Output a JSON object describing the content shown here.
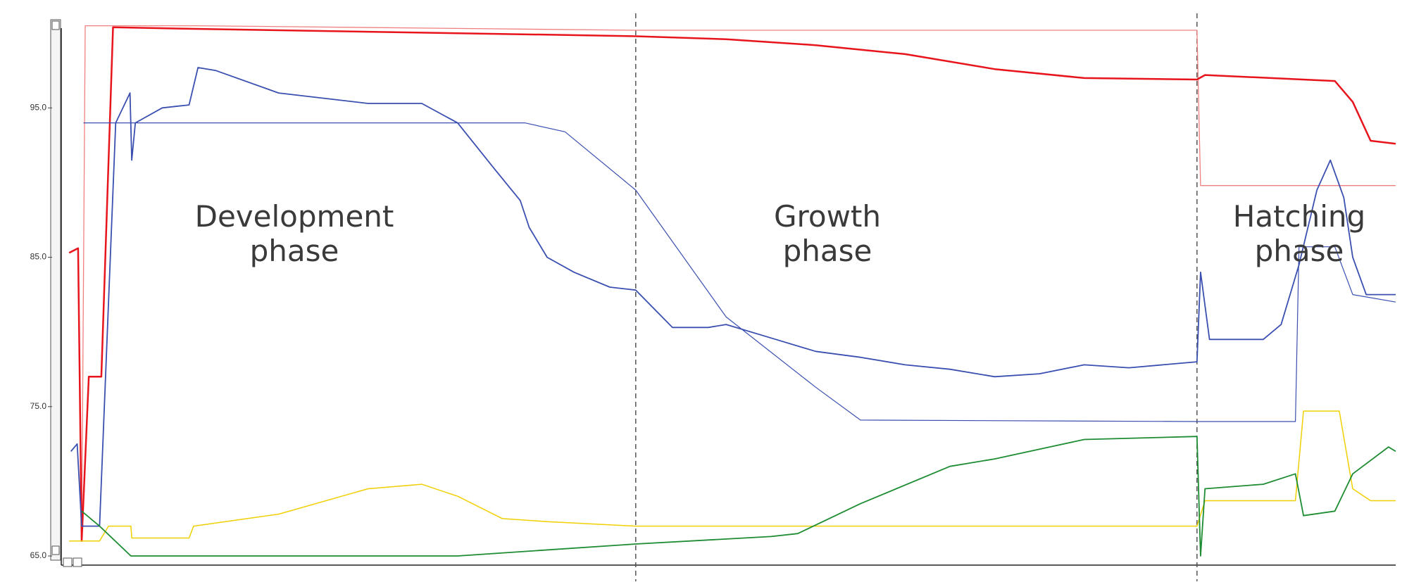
{
  "chart_data": {
    "type": "line",
    "ylim": [
      65,
      101
    ],
    "yticks": [
      {
        "value": 65,
        "label": "65.0"
      },
      {
        "value": 75,
        "label": "75.0"
      },
      {
        "value": 85,
        "label": "85.0"
      },
      {
        "value": 95,
        "label": "95.0"
      }
    ],
    "xlim": [
      58,
      1548
    ],
    "phase_boundaries": [
      699,
      1326
    ],
    "annotations": [
      "Development phase",
      "Growth phase",
      "Hatching phase"
    ],
    "series": [
      {
        "color": "#f08080",
        "width": 1.3,
        "x": [
          80,
          84,
          210,
          699,
          1326,
          1330,
          1548
        ],
        "values": [
          66,
          100.5,
          100.5,
          100.2,
          100.2,
          89.8,
          89.8
        ]
      },
      {
        "color": "#e8141c",
        "width": 2.5,
        "x": [
          66,
          76,
          80,
          88,
          102,
          115,
          200,
          400,
          600,
          699,
          800,
          900,
          1000,
          1100,
          1200,
          1326,
          1335,
          1480,
          1500,
          1520,
          1548
        ],
        "values": [
          85.3,
          85.6,
          66,
          77,
          77,
          100.4,
          100.3,
          100.1,
          99.9,
          99.8,
          99.6,
          99.2,
          98.6,
          97.6,
          97.0,
          96.9,
          97.2,
          96.8,
          95.4,
          92.8,
          92.6
        ]
      },
      {
        "color": "#3a4fb0",
        "width": 1.2,
        "x": [
          82,
          575,
          620,
          699,
          800,
          900,
          950,
          1326,
          1436,
          1440,
          1480,
          1500,
          1548
        ],
        "values": [
          94,
          94,
          93.4,
          89.5,
          81,
          76.3,
          74.1,
          74.0,
          74.0,
          85.7,
          85.7,
          82.5,
          82
        ]
      },
      {
        "color": "#3a4fb0",
        "width": 1.8,
        "x": [
          68,
          75,
          80,
          100,
          118,
          134,
          136,
          140,
          170,
          200,
          210,
          230,
          300,
          400,
          460,
          500,
          540,
          570,
          580,
          600,
          630,
          670,
          699,
          740,
          780,
          800,
          850,
          900,
          950,
          1000,
          1050,
          1100,
          1150,
          1200,
          1250,
          1326,
          1330,
          1340,
          1400,
          1420,
          1440,
          1460,
          1475,
          1490,
          1500,
          1515,
          1548
        ],
        "values": [
          72,
          72.5,
          67,
          67,
          94,
          96,
          91.5,
          94,
          95,
          95.2,
          97.7,
          97.5,
          96,
          95.3,
          95.3,
          94,
          91,
          88.8,
          87,
          85,
          84,
          83,
          82.8,
          80.3,
          80.3,
          80.5,
          79.6,
          78.7,
          78.3,
          77.8,
          77.5,
          77,
          77.2,
          77.8,
          77.6,
          78,
          84,
          79.5,
          79.5,
          80.5,
          84.5,
          89.5,
          91.5,
          89,
          85,
          82.5,
          82.5
        ]
      },
      {
        "color": "#f0d000",
        "width": 1.5,
        "x": [
          66,
          100,
          110,
          135,
          136,
          200,
          205,
          300,
          400,
          460,
          500,
          550,
          600,
          699,
          1326,
          1335,
          1436,
          1445,
          1485,
          1500,
          1520,
          1548
        ],
        "values": [
          66,
          66,
          67,
          67,
          66.2,
          66.2,
          67,
          67.8,
          69.5,
          69.8,
          69,
          67.5,
          67.3,
          67,
          67,
          68.7,
          68.7,
          74.7,
          74.7,
          69.5,
          68.7,
          68.7
        ]
      },
      {
        "color": "#1e8c32",
        "width": 1.8,
        "x": [
          80,
          100,
          135,
          500,
          699,
          850,
          880,
          950,
          1050,
          1100,
          1200,
          1326,
          1330,
          1335,
          1400,
          1436,
          1445,
          1480,
          1500,
          1540,
          1548
        ],
        "values": [
          68,
          67,
          65,
          65,
          65.8,
          66.3,
          66.5,
          68.5,
          71,
          71.5,
          72.8,
          73,
          65,
          69.5,
          69.8,
          70.5,
          67.7,
          68,
          70.5,
          72.3,
          72
        ]
      }
    ]
  }
}
